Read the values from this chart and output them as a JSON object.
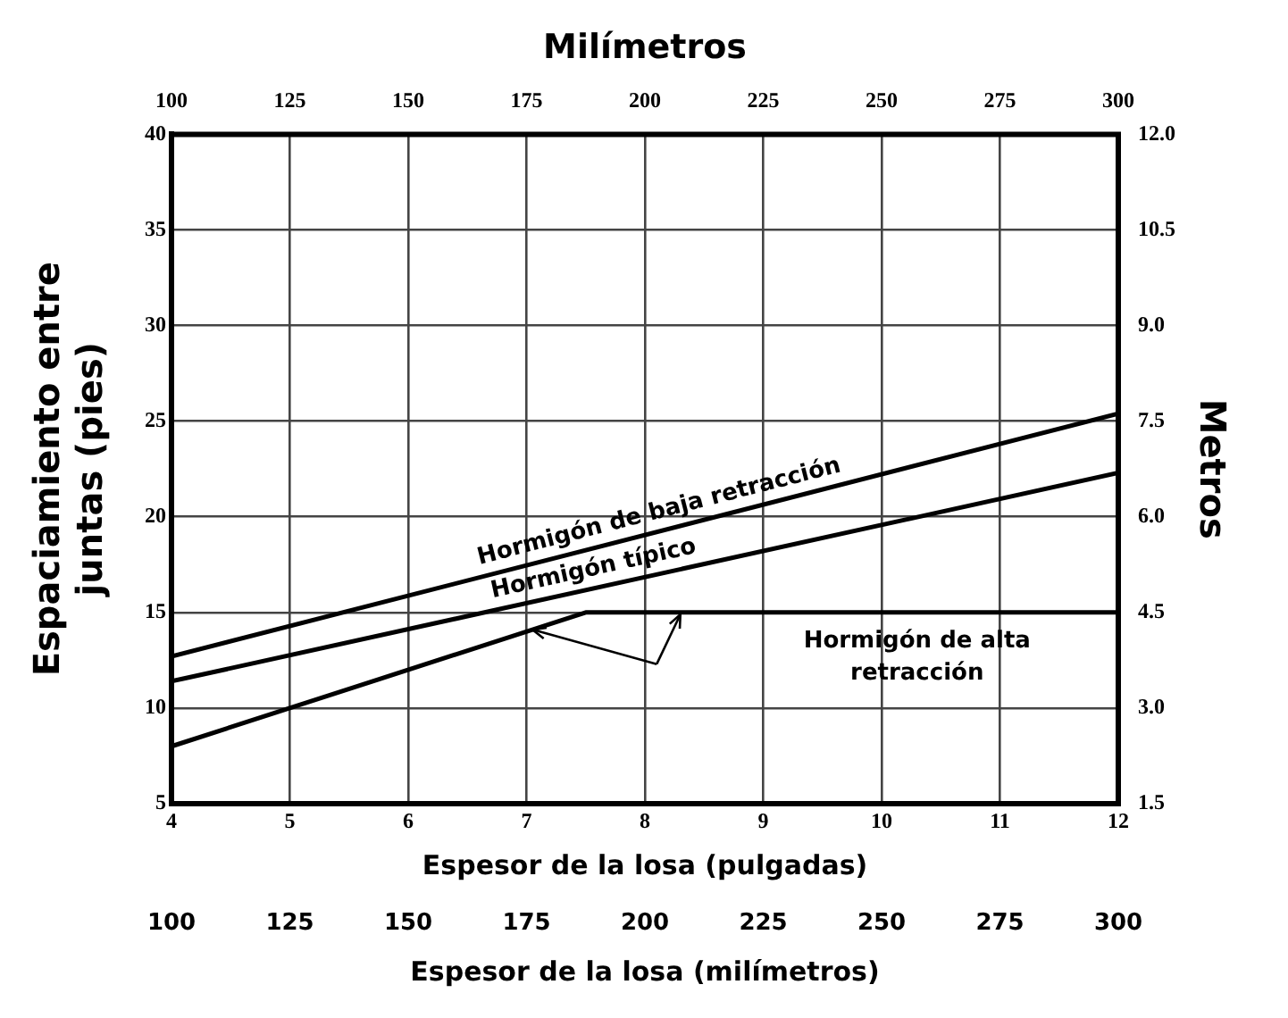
{
  "chart_data": {
    "type": "line",
    "xlabel": "Espesor de la losa (pulgadas)",
    "ylabel": "Espaciamiento entre juntas (pies)",
    "y2label": "Metros",
    "x2label": "Milímetros",
    "annotations": [
      "100",
      "125",
      "150",
      "175",
      "200",
      "225",
      "250",
      "275",
      "300",
      "Espesor de la losa (milímetros)"
    ],
    "xlim": [
      4,
      12
    ],
    "xticks": [
      4,
      5,
      6,
      7,
      8,
      9,
      10,
      11,
      12
    ],
    "ylim": [
      5,
      40
    ],
    "yticks": [
      5,
      10,
      15,
      20,
      25,
      30,
      35,
      40
    ],
    "x2lim": [
      100,
      300
    ],
    "x2ticks": [
      100,
      125,
      150,
      175,
      200,
      225,
      250,
      275,
      300
    ],
    "y2lim": [
      1.5,
      12
    ],
    "y2ticks": [
      {
        "value": 1.5,
        "label": "1.5"
      },
      {
        "value": 3,
        "label": "3.0"
      },
      {
        "value": 4.5,
        "label": "4.5"
      },
      {
        "value": 6,
        "label": "6.0"
      },
      {
        "value": 7.5,
        "label": "7.5"
      },
      {
        "value": 9,
        "label": "9.0"
      },
      {
        "value": 10.5,
        "label": "10.5"
      },
      {
        "value": 12,
        "label": "12.0"
      }
    ],
    "grid": true,
    "legend": false,
    "marker": "none",
    "line_style": "solid",
    "series": [
      {
        "name": "Hormigón de baja retracción",
        "color": "#000000",
        "x": [
          4,
          12
        ],
        "values": [
          12.7,
          25.4
        ]
      },
      {
        "name": "Hormigón típico",
        "color": "#000000",
        "x": [
          4,
          12
        ],
        "values": [
          11.4,
          22.3
        ]
      },
      {
        "name": "Hormigón de alta retracción",
        "color": "#000000",
        "x": [
          4,
          7.5,
          12
        ],
        "values": [
          8,
          15,
          15
        ]
      }
    ]
  }
}
